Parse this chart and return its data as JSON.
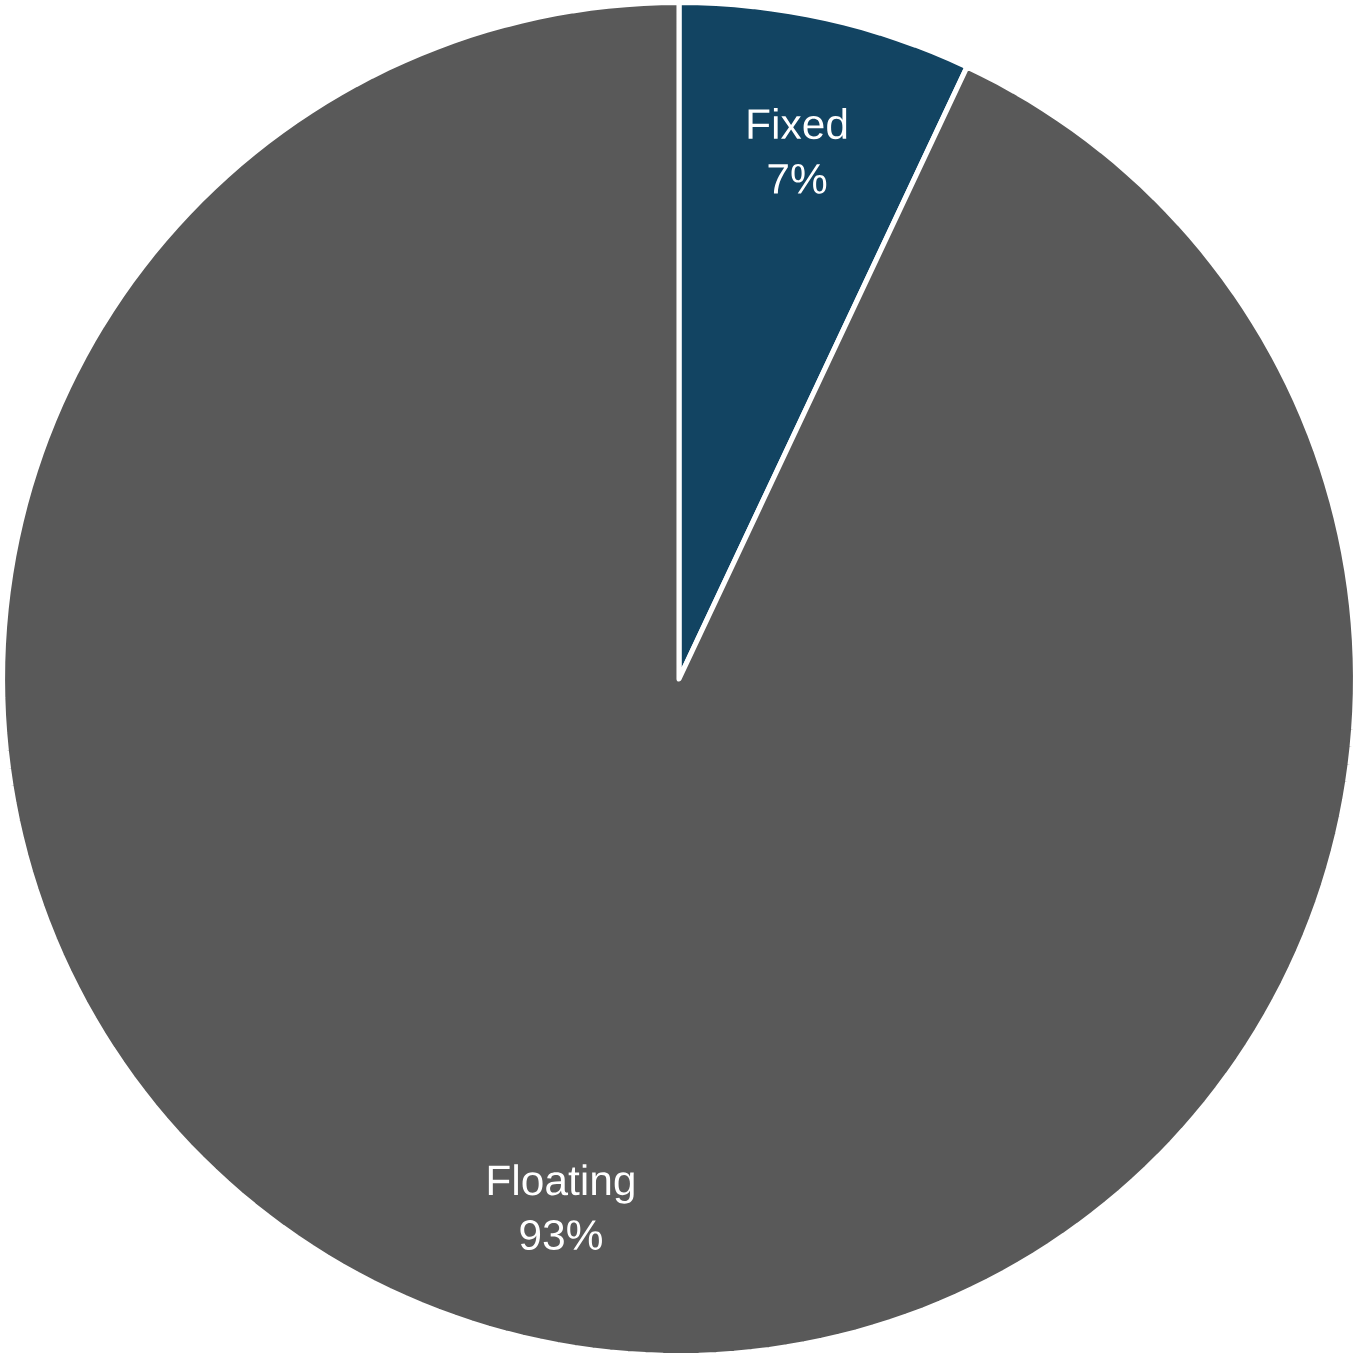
{
  "chart_data": {
    "type": "pie",
    "categories": [
      "Fixed",
      "Floating"
    ],
    "values": [
      7,
      93
    ],
    "colors": [
      "#124462",
      "#595959"
    ],
    "value_labels": [
      "7%",
      "93%"
    ]
  }
}
